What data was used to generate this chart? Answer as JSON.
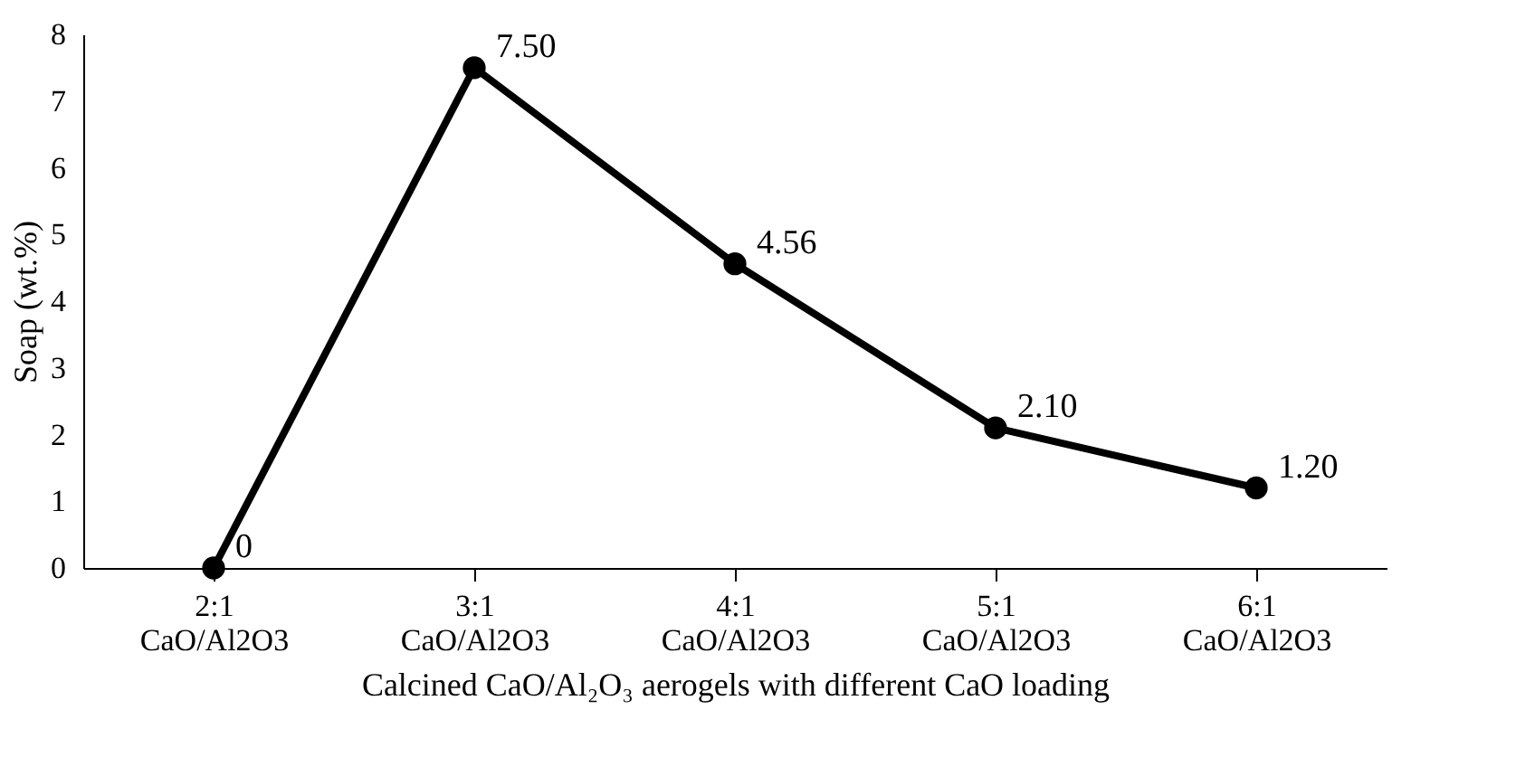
{
  "chart_data": {
    "type": "line",
    "xlabel": "Calcined CaO/Al₂O₃ aerogels with different CaO loading",
    "ylabel": "Soap (wt.%)",
    "categories": [
      "2:1\nCaO/Al2O3",
      "3:1\nCaO/Al2O3",
      "4:1\nCaO/Al2O3",
      "5:1\nCaO/Al2O3",
      "6:1\nCaO/Al2O3"
    ],
    "series": [
      {
        "color": "#000000",
        "values": [
          0,
          7.5,
          4.56,
          2.1,
          1.2
        ],
        "value_labels": [
          "0",
          "7.50",
          "4.56",
          "2.10",
          "1.20"
        ]
      }
    ],
    "ylim": [
      0,
      8
    ],
    "yticks": [
      0,
      1,
      2,
      3,
      4,
      5,
      6,
      7,
      8
    ],
    "grid": false,
    "marker": "circle",
    "line_style": "solid"
  }
}
